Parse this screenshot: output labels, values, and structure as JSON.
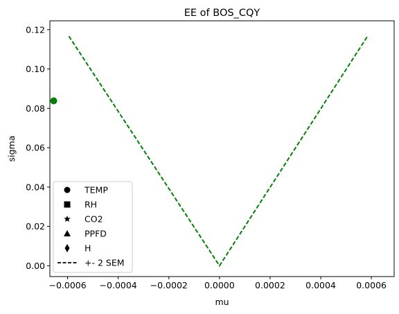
{
  "chart_data": {
    "type": "scatter",
    "title": "EE of BOS_CQY",
    "xlabel": "mu",
    "ylabel": "sigma",
    "xlim": [
      -0.00067,
      0.00069
    ],
    "ylim": [
      -0.0055,
      0.1245
    ],
    "x_ticks": [
      -0.0006,
      -0.0004,
      -0.0002,
      0.0,
      0.0002,
      0.0004,
      0.0006
    ],
    "x_tick_labels": [
      "−0.0006",
      "−0.0004",
      "−0.0002",
      "0.0000",
      "0.0002",
      "0.0004",
      "0.0006"
    ],
    "y_ticks": [
      0.0,
      0.02,
      0.04,
      0.06,
      0.08,
      0.1,
      0.12
    ],
    "y_tick_labels": [
      "0.00",
      "0.02",
      "0.04",
      "0.06",
      "0.08",
      "0.10",
      "0.12"
    ],
    "grid": false,
    "legend_placement": "lower-left",
    "points": [
      {
        "x": -0.000655,
        "y": 0.0838,
        "marker": "circle",
        "color": "#008000"
      }
    ],
    "sem_line": {
      "x": [
        -0.000595,
        0.0,
        0.000585
      ],
      "y": [
        0.1167,
        0.0,
        0.1167
      ],
      "color": "#008000",
      "style": "dashed"
    },
    "legend": [
      {
        "label": "TEMP",
        "marker": "circle"
      },
      {
        "label": "RH",
        "marker": "square"
      },
      {
        "label": "CO2",
        "marker": "star"
      },
      {
        "label": "PPFD",
        "marker": "triangle"
      },
      {
        "label": "H",
        "marker": "diamond"
      },
      {
        "label": "+- 2 SEM",
        "marker": "dashed-line"
      }
    ]
  }
}
